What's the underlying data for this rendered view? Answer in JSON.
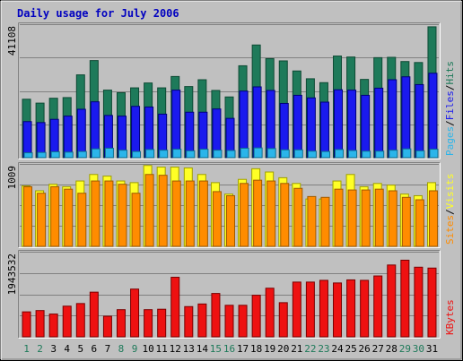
{
  "title": "Daily usage for July 2006",
  "colors": {
    "background": "#c0c0c0",
    "title": "#0000c0",
    "hits": "#1e7a5a",
    "files": "#1a1aee",
    "pages": "#2bb5ea",
    "visits": "#ffff26",
    "sites": "#ff8c00",
    "kbytes": "#ee1111",
    "weekday": "#000000",
    "weekend": "#1e7a5a"
  },
  "chart_data": [
    {
      "type": "bar",
      "panel": "hits-files-pages",
      "categories": [
        "1",
        "2",
        "3",
        "4",
        "5",
        "6",
        "7",
        "8",
        "9",
        "10",
        "11",
        "12",
        "13",
        "14",
        "15",
        "16",
        "17",
        "18",
        "19",
        "20",
        "21",
        "22",
        "23",
        "24",
        "25",
        "26",
        "27",
        "28",
        "29",
        "30",
        "31"
      ],
      "ymax_label": "41108",
      "ylim": [
        0,
        41108
      ],
      "ylabel_parts": [
        "Pages",
        "/",
        "Files",
        "/",
        "Hits"
      ],
      "series": [
        {
          "name": "Hits",
          "values": [
            18000,
            16800,
            18300,
            18500,
            25500,
            29900,
            20800,
            20000,
            21500,
            23000,
            21500,
            25000,
            21900,
            24000,
            20700,
            18700,
            28300,
            34700,
            30500,
            29800,
            26700,
            24300,
            23100,
            31300,
            31000,
            24100,
            30800,
            30900,
            29600,
            29300,
            40300
          ]
        },
        {
          "name": "Files",
          "values": [
            11100,
            10800,
            11800,
            12800,
            14900,
            17200,
            13000,
            12800,
            15800,
            15600,
            13400,
            20800,
            14000,
            14000,
            15000,
            12100,
            20500,
            21800,
            20700,
            16700,
            19200,
            18400,
            17100,
            20900,
            20800,
            19200,
            21400,
            24000,
            24900,
            22500,
            26000
          ]
        },
        {
          "name": "Pages",
          "values": [
            1500,
            1600,
            1800,
            1700,
            1900,
            2700,
            2900,
            2300,
            1900,
            2500,
            2300,
            2600,
            2100,
            2600,
            2300,
            2200,
            2900,
            3000,
            2800,
            2400,
            2400,
            2000,
            1900,
            2500,
            2200,
            2000,
            2000,
            2300,
            2700,
            2100,
            2600
          ]
        }
      ]
    },
    {
      "type": "bar",
      "panel": "sites-visits",
      "categories": [
        "1",
        "2",
        "3",
        "4",
        "5",
        "6",
        "7",
        "8",
        "9",
        "10",
        "11",
        "12",
        "13",
        "14",
        "15",
        "16",
        "17",
        "18",
        "19",
        "20",
        "21",
        "22",
        "23",
        "24",
        "25",
        "26",
        "27",
        "28",
        "29",
        "30",
        "31"
      ],
      "ymax_label": "1009",
      "ylim": [
        0,
        1009
      ],
      "ylabel_parts": [
        "Sites",
        "/",
        "Visits"
      ],
      "series": [
        {
          "name": "Visits",
          "values": [
            740,
            680,
            760,
            730,
            800,
            880,
            860,
            800,
            780,
            990,
            970,
            970,
            960,
            880,
            780,
            640,
            820,
            950,
            910,
            840,
            770,
            580,
            580,
            800,
            880,
            730,
            770,
            750,
            640,
            620,
            780
          ]
        },
        {
          "name": "Sites",
          "values": [
            730,
            650,
            730,
            700,
            650,
            800,
            800,
            760,
            650,
            880,
            870,
            800,
            800,
            800,
            670,
            620,
            770,
            810,
            800,
            770,
            710,
            610,
            600,
            700,
            690,
            690,
            700,
            680,
            600,
            570,
            680
          ]
        }
      ]
    },
    {
      "type": "bar",
      "panel": "kbytes",
      "categories": [
        "1",
        "2",
        "3",
        "4",
        "5",
        "6",
        "7",
        "8",
        "9",
        "10",
        "11",
        "12",
        "13",
        "14",
        "15",
        "16",
        "17",
        "18",
        "19",
        "20",
        "21",
        "22",
        "23",
        "24",
        "25",
        "26",
        "27",
        "28",
        "29",
        "30",
        "31"
      ],
      "ymax_label": "1943532",
      "ylim": [
        0,
        1943532
      ],
      "ylabel_parts": [
        "KBytes"
      ],
      "series": [
        {
          "name": "KBytes",
          "values": [
            570000,
            600000,
            520000,
            700000,
            760000,
            1020000,
            470000,
            620000,
            1090000,
            620000,
            630000,
            1360000,
            690000,
            750000,
            990000,
            720000,
            720000,
            950000,
            1110000,
            780000,
            1250000,
            1250000,
            1290000,
            1230000,
            1300000,
            1290000,
            1390000,
            1640000,
            1750000,
            1590000,
            1570000
          ]
        }
      ]
    }
  ],
  "x_axis": {
    "labels": [
      "1",
      "2",
      "3",
      "4",
      "5",
      "6",
      "7",
      "8",
      "9",
      "10",
      "11",
      "12",
      "13",
      "14",
      "15",
      "16",
      "17",
      "18",
      "19",
      "20",
      "21",
      "22",
      "23",
      "24",
      "25",
      "26",
      "27",
      "28",
      "29",
      "30",
      "31"
    ],
    "weekend_days": [
      "1",
      "2",
      "8",
      "9",
      "15",
      "16",
      "22",
      "23",
      "29",
      "30"
    ]
  }
}
